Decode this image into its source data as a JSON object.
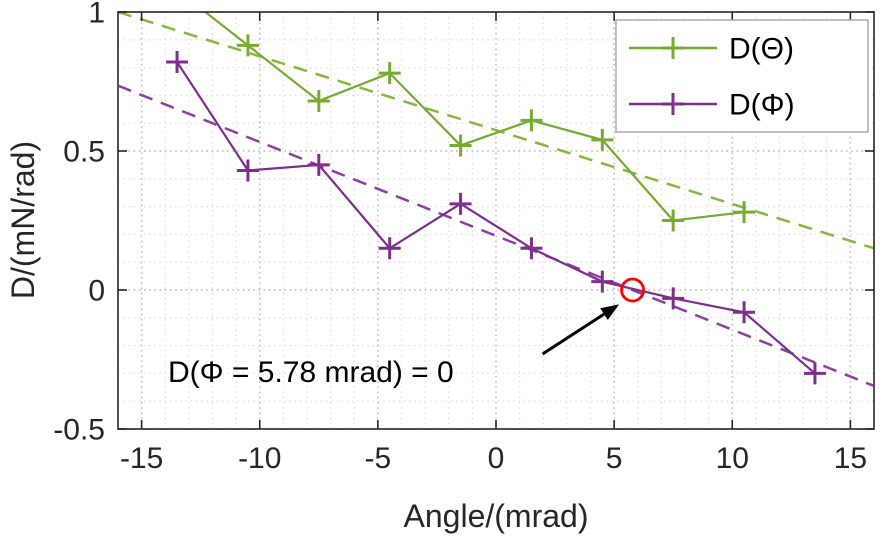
{
  "figure": {
    "background": "#ffffff"
  },
  "chart_data": {
    "type": "line",
    "title": "",
    "xlabel": "Angle/(mrad)",
    "ylabel": "D/(mN/rad)",
    "xlim": [
      -16,
      16
    ],
    "ylim": [
      -0.5,
      1
    ],
    "xtick_values": [
      -15,
      -10,
      -5,
      0,
      5,
      10,
      15
    ],
    "xtick_labels": [
      "-15",
      "-10",
      "-5",
      "0",
      "5",
      "10",
      "15"
    ],
    "ytick_values": [
      -0.5,
      0,
      0.5,
      1
    ],
    "ytick_labels": [
      "-0.5",
      "0",
      "0.5",
      "1"
    ],
    "minor_x_step": 1,
    "minor_y_step": 0.1,
    "grid_style": "dotted",
    "axis_color": "#262626",
    "major_grid_color": "#bcbcbc",
    "minor_grid_color": "#dedede",
    "legend": {
      "position": "top-right",
      "border_color": "#a6a6a6",
      "entries": [
        "D(Θ)",
        "D(Φ)"
      ]
    },
    "series": [
      {
        "name": "D(Θ)",
        "color": "#77ac30",
        "marker": "plus",
        "line_style": "solid",
        "x": [
          -13.5,
          -10.5,
          -7.5,
          -4.5,
          -1.5,
          1.5,
          4.5,
          7.5,
          10.5
        ],
        "y": [
          1.08,
          0.88,
          0.68,
          0.78,
          0.52,
          0.61,
          0.54,
          0.25,
          0.28
        ]
      },
      {
        "name": "D(Φ)",
        "color": "#7e2f8e",
        "marker": "plus",
        "line_style": "solid",
        "x": [
          -13.5,
          -10.5,
          -7.5,
          -4.5,
          -1.5,
          1.5,
          4.5,
          7.5,
          10.5,
          13.5
        ],
        "y": [
          0.82,
          0.43,
          0.45,
          0.15,
          0.31,
          0.15,
          0.03,
          -0.03,
          -0.08,
          -0.3
        ]
      }
    ],
    "trend_lines": [
      {
        "for_series": "D(Θ)",
        "style": "dashed",
        "color": "#86b93e",
        "x": [
          -16,
          16
        ],
        "y": [
          1.0,
          0.15
        ]
      },
      {
        "for_series": "D(Φ)",
        "style": "dashed",
        "color": "#8e3fa2",
        "x": [
          -16,
          16
        ],
        "y": [
          0.735,
          -0.345
        ]
      }
    ],
    "annotation": {
      "text": "D(Φ = 5.78 mrad) = 0",
      "point": {
        "x": 5.78,
        "y": 0
      },
      "circle_color": "#ff0000",
      "arrow_color": "#000000"
    }
  }
}
